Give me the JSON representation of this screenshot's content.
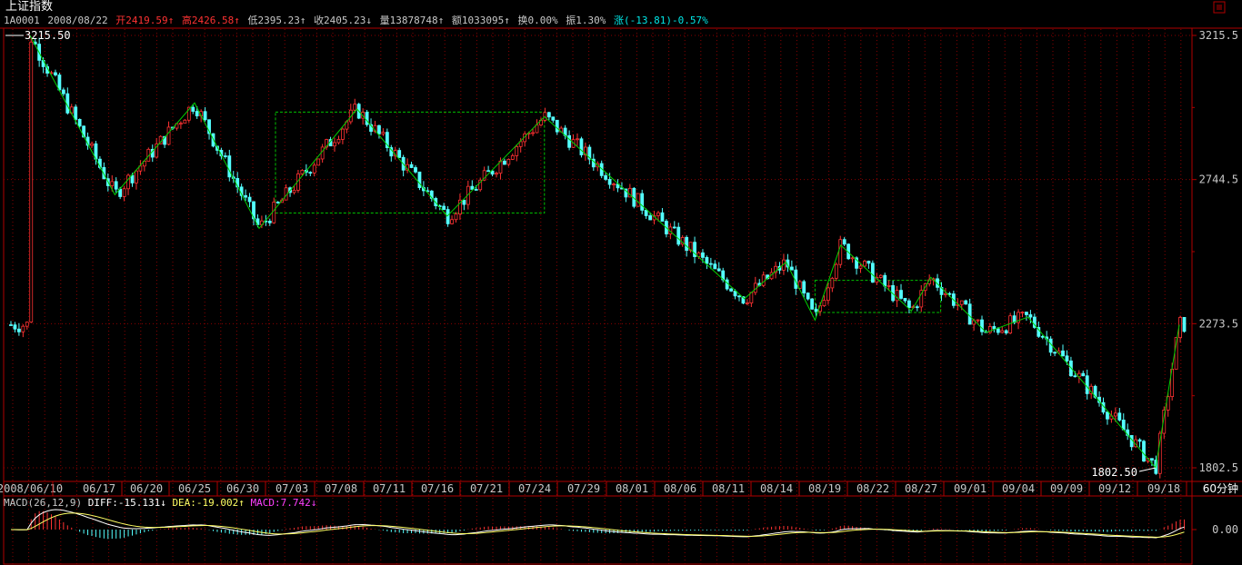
{
  "header": {
    "title": "上证指数",
    "quote": [
      {
        "text": "1A0001",
        "color": "#c8c8c8",
        "name": "quote-code"
      },
      {
        "text": "2008/08/22",
        "color": "#c8c8c8",
        "name": "quote-date"
      },
      {
        "text": "开2419.59↑",
        "color": "#ff3232",
        "name": "quote-open"
      },
      {
        "text": "高2426.58↑",
        "color": "#ff3232",
        "name": "quote-high"
      },
      {
        "text": "低2395.23↑",
        "color": "#c8c8c8",
        "name": "quote-low"
      },
      {
        "text": "收2405.23↓",
        "color": "#c8c8c8",
        "name": "quote-close"
      },
      {
        "text": "量13878748↑",
        "color": "#c8c8c8",
        "name": "quote-volume"
      },
      {
        "text": "额1033095↑",
        "color": "#c8c8c8",
        "name": "quote-amount"
      },
      {
        "text": "换0.00%",
        "color": "#c8c8c8",
        "name": "quote-turnover"
      },
      {
        "text": "振1.30%",
        "color": "#c8c8c8",
        "name": "quote-amplitude"
      },
      {
        "text": "涨(-13.81)-0.57%",
        "color": "#00e6e6",
        "name": "quote-change"
      }
    ]
  },
  "macd_legend": [
    {
      "text": "MACD(26,12,9)",
      "color": "#c8c8c8",
      "name": "macd-params"
    },
    {
      "text": "DIFF:-15.131↓",
      "color": "#ffffff",
      "name": "macd-diff"
    },
    {
      "text": "DEA:-19.002↑",
      "color": "#ffff64",
      "name": "macd-dea"
    },
    {
      "text": "MACD:7.742↓",
      "color": "#ff40ff",
      "name": "macd-value"
    }
  ],
  "period_label": "60分钟",
  "colors": {
    "up": "#ff3232",
    "down": "#54ffff",
    "frame": "#b00000",
    "grid": "#8a0000",
    "axis_text": "#c8c8c8",
    "zigzag": "#00d000",
    "box": "#00c000",
    "diff_line": "#ffffff",
    "dea_line": "#ffff64"
  },
  "chart_data": {
    "type": "candlestick",
    "x_labels": [
      "2008/06/10",
      "06/17",
      "06/20",
      "06/25",
      "06/30",
      "07/03",
      "07/08",
      "07/11",
      "07/16",
      "07/21",
      "07/24",
      "07/29",
      "08/01",
      "08/06",
      "08/11",
      "08/14",
      "08/19",
      "08/22",
      "08/27",
      "09/01",
      "09/04",
      "09/09",
      "09/12",
      "09/18"
    ],
    "y_ticks": [
      "3215.5",
      "2744.5",
      "2273.5",
      "1802.5"
    ],
    "ylim": [
      1802.5,
      3215.5
    ],
    "high_marker": "3215.50",
    "low_marker": "1802.50",
    "zigzag_points": [
      {
        "date": "2008/06/10",
        "price": 3215.5
      },
      {
        "date": "06/18",
        "price": 2695
      },
      {
        "date": "06/25",
        "price": 2995
      },
      {
        "date": "07/01",
        "price": 2585
      },
      {
        "date": "07/09",
        "price": 2975
      },
      {
        "date": "07/17",
        "price": 2625
      },
      {
        "date": "07/25",
        "price": 2950
      },
      {
        "date": "08/12",
        "price": 2355
      },
      {
        "date": "08/15",
        "price": 2475
      },
      {
        "date": "08/18",
        "price": 2285
      },
      {
        "date": "08/20",
        "price": 2530
      },
      {
        "date": "08/26",
        "price": 2315
      },
      {
        "date": "08/28",
        "price": 2425
      },
      {
        "date": "09/02",
        "price": 2245
      },
      {
        "date": "09/05",
        "price": 2295
      },
      {
        "date": "09/17",
        "price": 1802.5
      },
      {
        "date": "09/19",
        "price": 2270
      }
    ],
    "consolidation_boxes": [
      {
        "from": "07/02",
        "to": "07/25",
        "top": 2965,
        "bottom": 2635
      },
      {
        "from": "08/18",
        "to": "08/29",
        "top": 2415,
        "bottom": 2310
      }
    ]
  }
}
